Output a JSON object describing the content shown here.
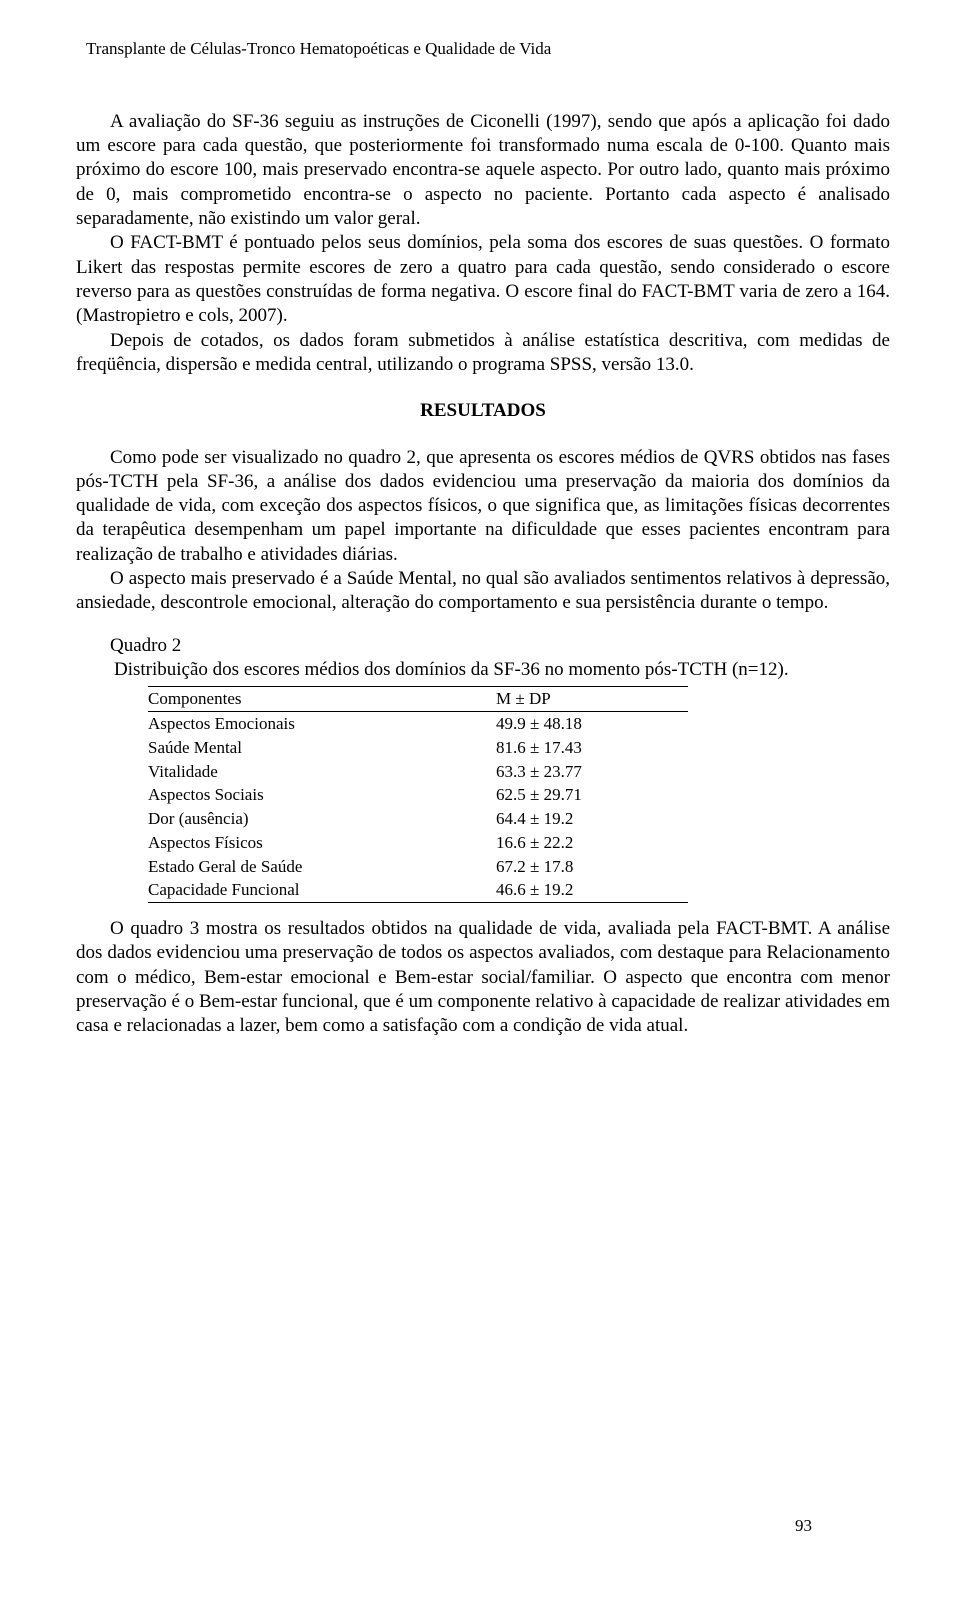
{
  "running_header": "Transplante de Células-Tronco Hematopoéticas e Qualidade de Vida",
  "p1": "A avaliação do SF-36 seguiu as instruções de Ciconelli (1997), sendo que após a aplicação foi dado um escore para cada questão, que posteriormente foi transformado numa escala de 0-100. Quanto mais próximo do escore 100, mais preservado encontra-se aquele aspecto. Por outro lado, quanto mais próximo de 0, mais comprometido encontra-se o aspecto no paciente. Portanto cada aspecto é analisado separadamente, não existindo um valor geral.",
  "p2": "O FACT-BMT é pontuado pelos seus domínios, pela soma dos escores de suas questões. O formato Likert das respostas permite escores de zero a quatro para cada questão, sendo considerado o escore reverso para as questões construídas de forma negativa. O escore final do FACT-BMT varia de zero a 164. (Mastropietro e cols, 2007).",
  "p3": "Depois de cotados, os dados foram submetidos à análise estatística descritiva, com medidas de freqüência, dispersão e medida central, utilizando o programa SPSS, versão 13.0.",
  "section_title": "RESULTADOS",
  "p4": "Como pode ser visualizado no quadro 2, que apresenta os escores médios de QVRS obtidos nas fases pós-TCTH  pela SF-36, a análise dos dados evidenciou uma preservação da maioria dos domínios da qualidade de vida, com exceção dos aspectos físicos, o que significa que, as limitações físicas decorrentes da terapêutica desempenham um papel importante na dificuldade que esses pacientes encontram para realização de trabalho e atividades diárias.",
  "p5": "O aspecto mais preservado é a Saúde Mental, no qual são avaliados sentimentos relativos à depressão, ansiedade, descontrole emocional, alteração do comportamento e sua persistência durante o tempo.",
  "quadro2": {
    "label": "Quadro 2",
    "caption": "Distribuição dos escores médios dos domínios da SF-36 no momento pós-TCTH (n=12).",
    "col1_header": "Componentes",
    "col2_header": "M ± DP",
    "rows": [
      {
        "label": "Aspectos Emocionais",
        "value": "49.9 ± 48.18"
      },
      {
        "label": "Saúde Mental",
        "value": "81.6 ± 17.43"
      },
      {
        "label": "Vitalidade",
        "value": "63.3 ± 23.77"
      },
      {
        "label": "Aspectos Sociais",
        "value": "62.5 ± 29.71"
      },
      {
        "label": "Dor (ausência)",
        "value": "64.4 ± 19.2"
      },
      {
        "label": "Aspectos Físicos",
        "value": "16.6 ± 22.2"
      },
      {
        "label": "Estado Geral de Saúde",
        "value": "67.2 ± 17.8"
      },
      {
        "label": "Capacidade Funcional",
        "value": "46.6 ± 19.2"
      }
    ]
  },
  "p6": "O quadro 3 mostra os resultados obtidos na qualidade de vida, avaliada pela FACT-BMT. A análise dos dados evidenciou uma preservação de todos os aspectos avaliados, com destaque para Relacionamento com o médico, Bem-estar emocional e Bem-estar social/familiar. O aspecto que encontra com menor preservação é o Bem-estar funcional, que é um componente relativo à capacidade de realizar atividades em casa e relacionadas a lazer, bem como a satisfação com a condição de vida atual.",
  "page_number": "93"
}
